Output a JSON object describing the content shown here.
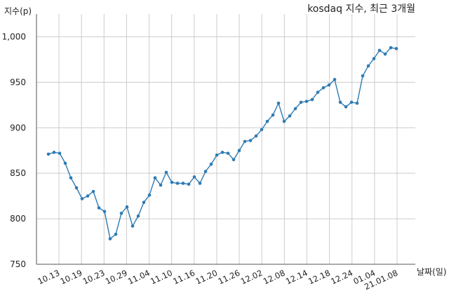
{
  "chart_data": {
    "type": "line",
    "title": "kosdaq 지수, 최근 3개월",
    "ylabel": "지수(p)",
    "xlabel": "날짜(일)",
    "ylim": [
      750,
      1025
    ],
    "yticks": [
      750,
      800,
      850,
      900,
      950,
      1000
    ],
    "ytick_labels": [
      "750",
      "800",
      "850",
      "900",
      "950",
      "1,000"
    ],
    "xticks": [
      "10.13",
      "10.19",
      "10.23",
      "10.29",
      "11.04",
      "11.10",
      "11.16",
      "11.20",
      "11.26",
      "12.02",
      "12.08",
      "12.14",
      "12.18",
      "12.24",
      "01.04",
      "21.01.08"
    ],
    "grid": true,
    "line_color": "#2e7bb4",
    "series": [
      {
        "values": [
          871,
          873,
          872,
          861,
          845,
          834,
          822,
          825,
          830,
          812,
          808,
          778,
          783,
          806,
          813,
          792,
          803,
          818,
          826,
          845,
          837,
          851,
          840,
          839,
          839,
          838,
          846,
          839,
          852,
          860,
          870,
          873,
          872,
          865,
          875,
          885,
          886,
          891,
          898,
          907,
          914,
          927,
          907,
          913,
          921,
          928,
          929,
          931,
          939,
          944,
          947,
          953,
          928,
          923,
          928,
          927,
          957,
          968,
          976,
          985,
          981,
          988,
          987
        ]
      }
    ]
  }
}
